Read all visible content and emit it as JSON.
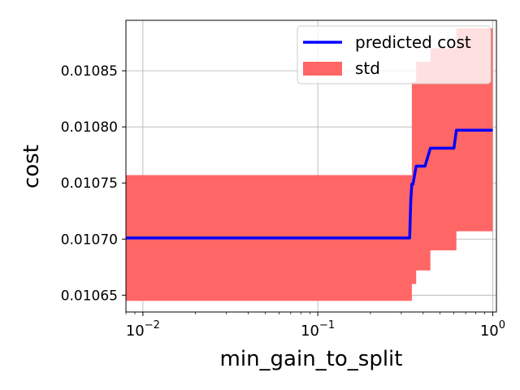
{
  "chart_data": {
    "type": "line",
    "title": "",
    "xlabel": "min_gain_to_split",
    "ylabel": "cost",
    "x_scale": "log",
    "xlim": [
      0.008,
      1.05
    ],
    "ylim": [
      0.010635,
      0.010895
    ],
    "grid": true,
    "legend_position": "top-right",
    "x_ticks": [
      {
        "value": 0.01,
        "base": "10",
        "exp": "−2"
      },
      {
        "value": 0.1,
        "base": "10",
        "exp": "−1"
      },
      {
        "value": 1.0,
        "base": "10",
        "exp": "0"
      }
    ],
    "y_ticks": [
      {
        "value": 0.01065,
        "label": "0.01065"
      },
      {
        "value": 0.0107,
        "label": "0.01070"
      },
      {
        "value": 0.01075,
        "label": "0.01075"
      },
      {
        "value": 0.0108,
        "label": "0.01080"
      },
      {
        "value": 0.01085,
        "label": "0.01085"
      }
    ],
    "series": [
      {
        "name": "predicted cost",
        "kind": "line",
        "color": "#0000ff",
        "x": [
          0.008,
          0.335,
          0.34,
          0.345,
          0.35,
          0.365,
          0.38,
          0.41,
          0.44,
          0.6,
          0.62,
          1.0
        ],
        "y": [
          0.010701,
          0.010701,
          0.010735,
          0.010749,
          0.010749,
          0.010765,
          0.010765,
          0.010765,
          0.010781,
          0.010781,
          0.010797,
          0.010797
        ]
      },
      {
        "name": "std",
        "kind": "band",
        "color": "#ff6666",
        "x": [
          0.008,
          0.335,
          0.345,
          0.365,
          0.38,
          0.41,
          0.44,
          0.6,
          0.62,
          1.0
        ],
        "upper": [
          0.010757,
          0.010757,
          0.01084,
          0.010858,
          0.010858,
          0.010858,
          0.01087,
          0.01087,
          0.010888,
          0.010888
        ],
        "lower": [
          0.010645,
          0.010645,
          0.01066,
          0.010672,
          0.010672,
          0.010672,
          0.01069,
          0.01069,
          0.010707,
          0.010707
        ]
      }
    ]
  },
  "legend": {
    "line_label": "predicted cost",
    "band_label": "std"
  }
}
